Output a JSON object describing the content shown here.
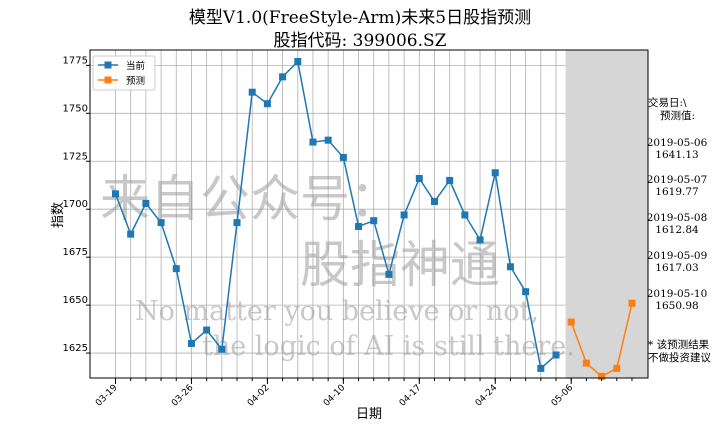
{
  "chart_data": {
    "type": "line",
    "title": "模型V1.0(FreeStyle-Arm)未来5日股指预测",
    "subtitle": "股指代码: 399006.SZ",
    "xlabel": "日期",
    "ylabel": "指数",
    "ylim": [
      1612,
      1783
    ],
    "yticks": [
      1625,
      1650,
      1675,
      1700,
      1725,
      1750,
      1775
    ],
    "grid": true,
    "legend_position": "top-left",
    "xtick_labels": [
      "03-19",
      "03-26",
      "04-02",
      "04-10",
      "04-17",
      "04-24",
      "05-06"
    ],
    "series": [
      {
        "name": "当前",
        "color": "#1f77b4",
        "values": [
          1708,
          1687,
          1703,
          1693,
          1669,
          1630,
          1637,
          1627,
          1693,
          1761,
          1755,
          1769,
          1777,
          1735,
          1736,
          1727,
          1691,
          1694,
          1666,
          1697,
          1716,
          1704,
          1715,
          1697,
          1684,
          1719,
          1670,
          1657,
          1617,
          1624
        ]
      },
      {
        "name": "预测",
        "color": "#ff7f0e",
        "dates": [
          "2019-05-06",
          "2019-05-07",
          "2019-05-08",
          "2019-05-09",
          "2019-05-10"
        ],
        "values": [
          1641.13,
          1619.77,
          1612.84,
          1617.03,
          1650.98
        ]
      }
    ],
    "predict_panel": {
      "header": "交易日:\\",
      "subheader": "预测值:",
      "entries": [
        {
          "date": "2019-05-06",
          "value": "1641.13"
        },
        {
          "date": "2019-05-07",
          "value": "1619.77"
        },
        {
          "date": "2019-05-08",
          "value": "1612.84"
        },
        {
          "date": "2019-05-09",
          "value": "1617.03"
        },
        {
          "date": "2019-05-10",
          "value": "1650.98"
        }
      ],
      "footnote_1": "* 该预测结果",
      "footnote_2": "不做投资建议"
    },
    "watermark": {
      "line1": "来自公众号：",
      "line2": "股指神通",
      "line3": "No matter you believe or not,",
      "line4": "the logic of AI is still there."
    }
  }
}
